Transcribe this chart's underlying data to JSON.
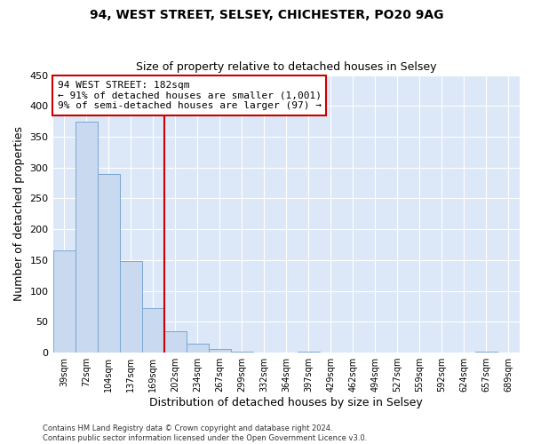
{
  "title1": "94, WEST STREET, SELSEY, CHICHESTER, PO20 9AG",
  "title2": "Size of property relative to detached houses in Selsey",
  "xlabel": "Distribution of detached houses by size in Selsey",
  "ylabel": "Number of detached properties",
  "bar_labels": [
    "39sqm",
    "72sqm",
    "104sqm",
    "137sqm",
    "169sqm",
    "202sqm",
    "234sqm",
    "267sqm",
    "299sqm",
    "332sqm",
    "364sqm",
    "397sqm",
    "429sqm",
    "462sqm",
    "494sqm",
    "527sqm",
    "559sqm",
    "592sqm",
    "624sqm",
    "657sqm",
    "689sqm"
  ],
  "bar_values": [
    165,
    375,
    290,
    148,
    72,
    35,
    15,
    6,
    2,
    0,
    0,
    1,
    0,
    0,
    0,
    0,
    0,
    0,
    0,
    1,
    0
  ],
  "bar_color": "#c8d9f0",
  "bar_edge_color": "#7aa8d4",
  "vline_x": 4.5,
  "vline_color": "#cc0000",
  "annotation_line1": "94 WEST STREET: 182sqm",
  "annotation_line2": "← 91% of detached houses are smaller (1,001)",
  "annotation_line3": "9% of semi-detached houses are larger (97) →",
  "annotation_box_color": "#ffffff",
  "annotation_box_edge": "#cc0000",
  "ylim": [
    0,
    450
  ],
  "yticks": [
    0,
    50,
    100,
    150,
    200,
    250,
    300,
    350,
    400,
    450
  ],
  "footer1": "Contains HM Land Registry data © Crown copyright and database right 2024.",
  "footer2": "Contains public sector information licensed under the Open Government Licence v3.0.",
  "bg_color": "#ffffff",
  "plot_bg_color": "#dce8f8"
}
